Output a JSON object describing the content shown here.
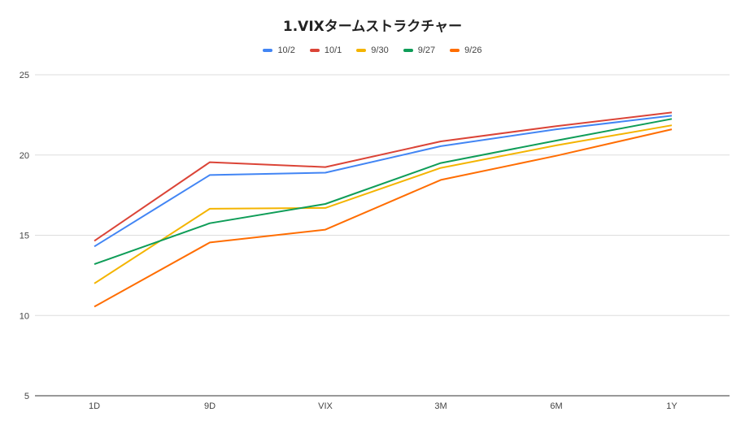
{
  "chart_data": {
    "type": "line",
    "title": "1.VIXタームストラクチャー",
    "categories": [
      "1D",
      "9D",
      "VIX",
      "3M",
      "6M",
      "1Y"
    ],
    "ylim": [
      5,
      25
    ],
    "yticks": [
      5,
      10,
      15,
      20,
      25
    ],
    "grid": true,
    "legend_position": "top-center",
    "series": [
      {
        "name": "10/2",
        "color": "#4285f4",
        "values": [
          14.3,
          18.75,
          18.9,
          20.55,
          21.6,
          22.45
        ]
      },
      {
        "name": "10/1",
        "color": "#db4437",
        "values": [
          14.65,
          19.55,
          19.25,
          20.85,
          21.8,
          22.65
        ]
      },
      {
        "name": "9/30",
        "color": "#f4b400",
        "values": [
          12.0,
          16.65,
          16.7,
          19.2,
          20.6,
          21.85
        ]
      },
      {
        "name": "9/27",
        "color": "#0f9d58",
        "values": [
          13.2,
          15.75,
          16.95,
          19.5,
          20.9,
          22.25
        ]
      },
      {
        "name": "9/26",
        "color": "#ff6d01",
        "values": [
          10.55,
          14.55,
          15.35,
          18.45,
          19.95,
          21.6
        ]
      }
    ]
  }
}
